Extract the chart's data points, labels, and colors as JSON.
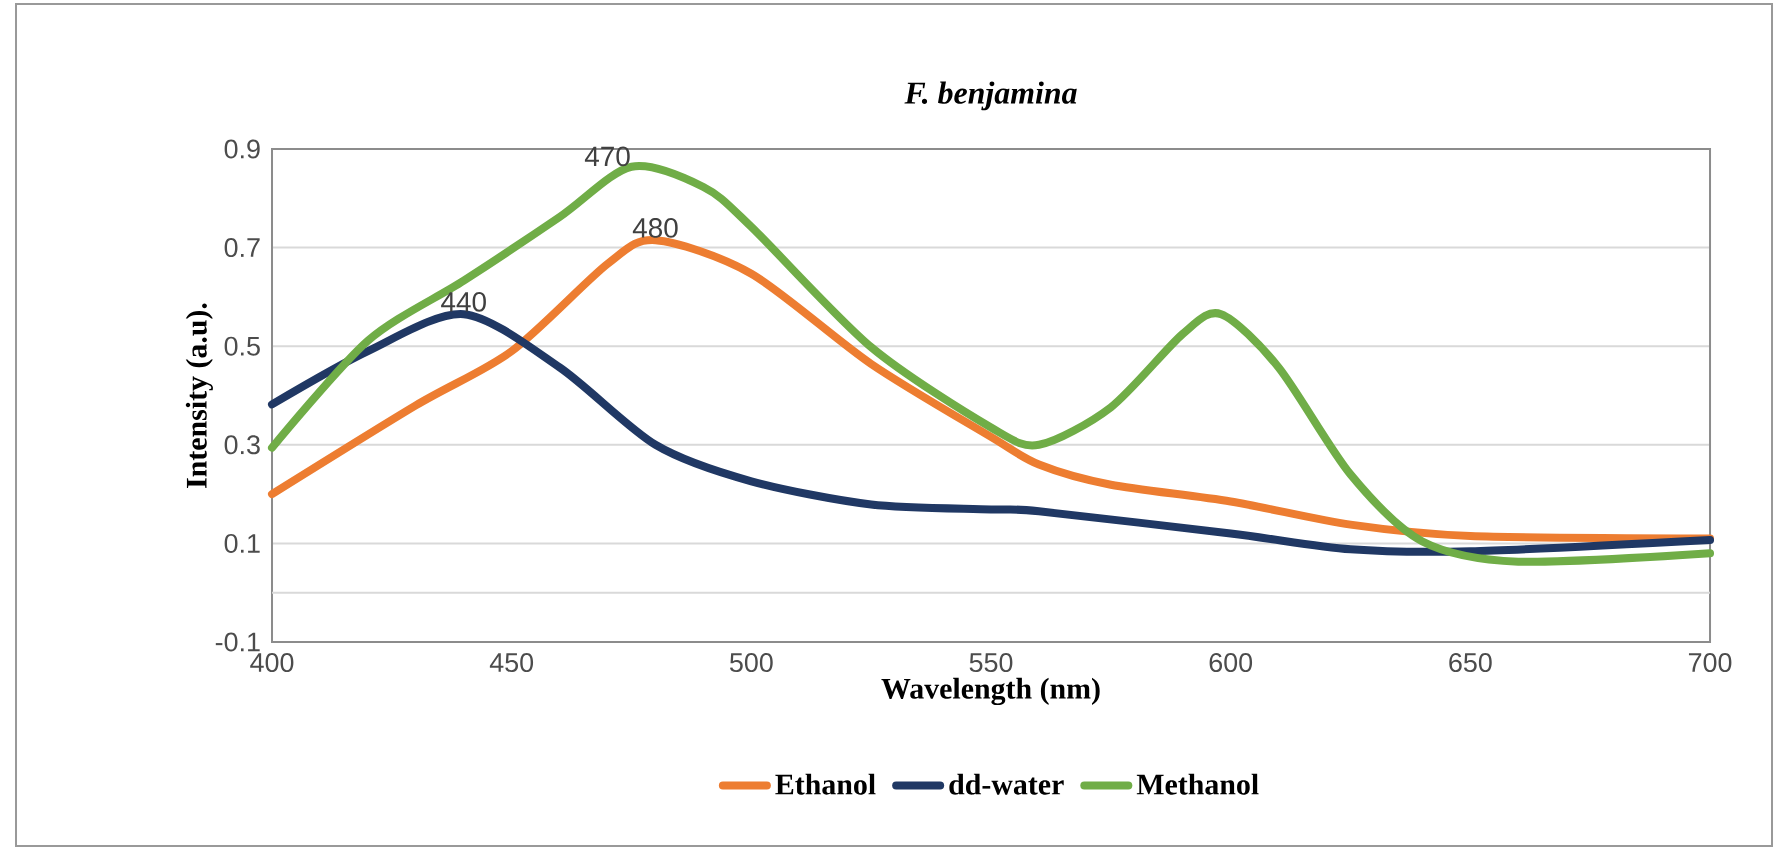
{
  "chart_data": {
    "type": "line",
    "title": "F. benjamina",
    "xlabel": "Wavelength (nm)",
    "ylabel": "Intensity (a.u).",
    "xlim": [
      400,
      700
    ],
    "xticks": [
      400,
      450,
      500,
      550,
      600,
      650,
      700
    ],
    "ylim": [
      -0.1,
      0.9
    ],
    "yticks": [
      -0.1,
      0.1,
      0.3,
      0.5,
      0.7,
      0.9
    ],
    "grid": "y",
    "legend": "bottom",
    "line_style": "solid",
    "ref_lines": [
      {
        "axis": "y",
        "value": 0,
        "color": "#d9d9d9"
      }
    ],
    "annotations": [
      {
        "text": "440",
        "x": 440,
        "y": 0.565
      },
      {
        "text": "480",
        "x": 480,
        "y": 0.715
      },
      {
        "text": "470",
        "x": 470,
        "y": 0.86
      }
    ],
    "series": [
      {
        "name": "Ethanol",
        "color": "#ed7d31",
        "x": [
          400,
          430,
          450,
          470,
          480,
          500,
          525,
          550,
          560,
          575,
          600,
          625,
          650,
          700
        ],
        "values": [
          0.2,
          0.38,
          0.49,
          0.667,
          0.715,
          0.647,
          0.464,
          0.316,
          0.26,
          0.219,
          0.185,
          0.138,
          0.115,
          0.11
        ]
      },
      {
        "name": "dd-water",
        "color": "#203864",
        "x": [
          400,
          420,
          440,
          460,
          480,
          500,
          525,
          550,
          560,
          600,
          625,
          650,
          700
        ],
        "values": [
          0.382,
          0.49,
          0.565,
          0.457,
          0.3,
          0.226,
          0.179,
          0.169,
          0.165,
          0.12,
          0.088,
          0.084,
          0.107
        ]
      },
      {
        "name": "Methanol",
        "color": "#70ad47",
        "x": [
          400,
          420,
          440,
          460,
          475,
          490,
          500,
          525,
          550,
          560,
          575,
          590,
          598,
          610,
          625,
          640,
          660,
          700
        ],
        "values": [
          0.294,
          0.511,
          0.633,
          0.762,
          0.864,
          0.823,
          0.742,
          0.498,
          0.335,
          0.3,
          0.376,
          0.525,
          0.565,
          0.457,
          0.24,
          0.104,
          0.063,
          0.08
        ]
      }
    ]
  }
}
